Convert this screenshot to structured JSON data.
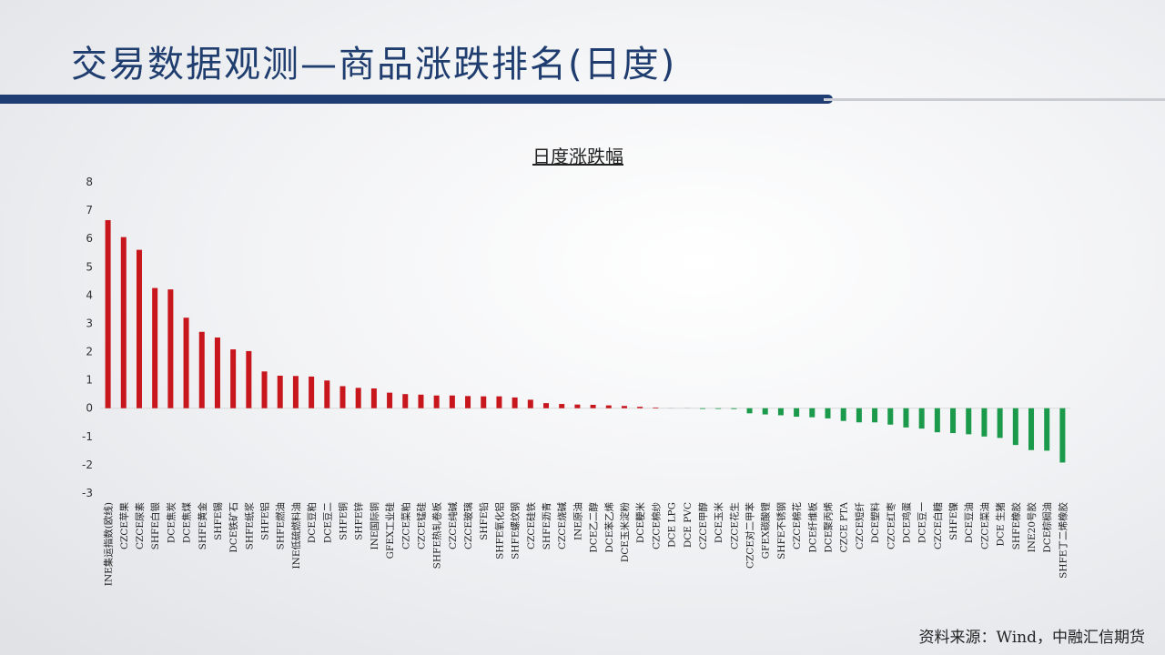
{
  "page": {
    "title": "交易数据观测—商品涨跌排名(日度)",
    "source": "资料来源：Wind，中融汇信期货"
  },
  "colors": {
    "up": "#c8161d",
    "down": "#1a9a4a",
    "title": "#1f3d6e"
  },
  "chart_data": {
    "type": "bar",
    "title": "日度涨跌幅",
    "xlabel": "",
    "ylabel": "",
    "ylim": [
      -3,
      8
    ],
    "yticks": [
      -3,
      -2,
      -1,
      0,
      1,
      2,
      3,
      4,
      5,
      6,
      7,
      8
    ],
    "grid": false,
    "legend": "none",
    "categories": [
      "INE集运指数(欧线)",
      "CZCE苹果",
      "CZCE尿素",
      "SHFE白银",
      "DCE焦炭",
      "DCE焦煤",
      "SHFE黄金",
      "SHFE锡",
      "DCE铁矿石",
      "SHFE纸浆",
      "SHFE铝",
      "SHFE燃油",
      "INE低硫燃料油",
      "DCE豆粕",
      "DCE豆二",
      "SHFE铜",
      "SHFE锌",
      "INE国际铜",
      "GFEX工业硅",
      "CZCE菜粕",
      "CZCE锰硅",
      "SHFE热轧卷板",
      "CZCE纯碱",
      "CZCE玻璃",
      "SHFE铅",
      "SHFE氧化铝",
      "SHFE螺纹钢",
      "CZCE硅铁",
      "SHFE沥青",
      "CZCE烧碱",
      "INE原油",
      "DCE乙二醇",
      "DCE苯乙烯",
      "DCE玉米淀粉",
      "DCE粳米",
      "CZCE棉纱",
      "DCE LPG",
      "DCE PVC",
      "CZCE甲醇",
      "DCE玉米",
      "CZCE花生",
      "CZCE对二甲苯",
      "GFEX碳酸锂",
      "SHFE不锈钢",
      "CZCE棉花",
      "DCE纤维板",
      "DCE聚丙烯",
      "CZCE PTA",
      "CZCE短纤",
      "DCE塑料",
      "CZCE红枣",
      "DCE鸡蛋",
      "DCE豆一",
      "CZCE白糖",
      "SHFE镍",
      "DCE豆油",
      "CZCE菜油",
      "DCE 生猪",
      "SHFE橡胶",
      "INE20号胶",
      "DCE棕榈油",
      "SHFE丁二烯橡胶"
    ],
    "values": [
      6.65,
      6.05,
      5.6,
      4.25,
      4.2,
      3.2,
      2.7,
      2.5,
      2.08,
      2.02,
      1.3,
      1.15,
      1.14,
      1.12,
      0.98,
      0.78,
      0.72,
      0.7,
      0.55,
      0.5,
      0.48,
      0.45,
      0.45,
      0.43,
      0.42,
      0.42,
      0.38,
      0.3,
      0.18,
      0.15,
      0.13,
      0.12,
      0.1,
      0.08,
      0.05,
      0.02,
      0.01,
      0.0,
      -0.02,
      -0.02,
      -0.03,
      -0.18,
      -0.22,
      -0.25,
      -0.3,
      -0.32,
      -0.36,
      -0.45,
      -0.5,
      -0.5,
      -0.58,
      -0.68,
      -0.72,
      -0.85,
      -0.88,
      -0.92,
      -1.0,
      -1.05,
      -1.3,
      -1.48,
      -1.5,
      -1.92
    ]
  }
}
